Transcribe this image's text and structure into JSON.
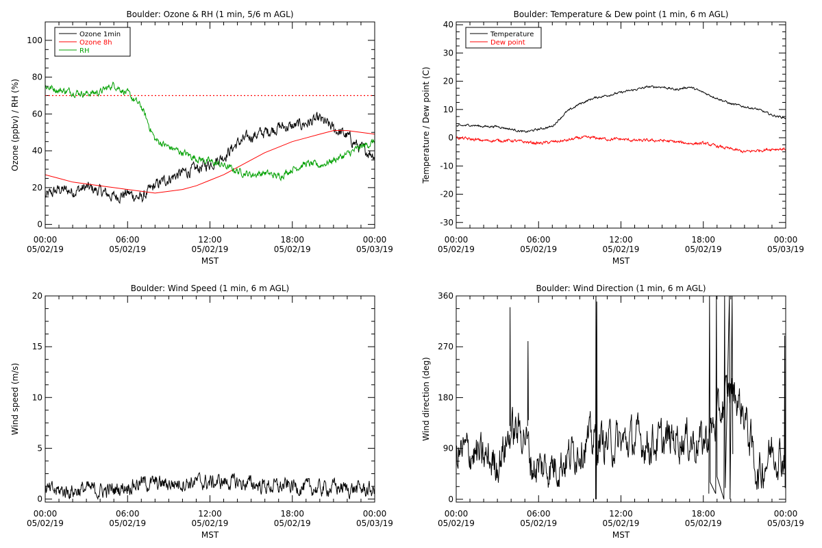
{
  "chart_data": [
    {
      "type": "line",
      "title": "Boulder: Ozone & RH (1 min, 5/6 m AGL)",
      "ylabel": "Ozone (ppbv) / RH (%)",
      "xlabel": "MST",
      "xlim": [
        0,
        24
      ],
      "ylim": [
        -2,
        110
      ],
      "yticks": [
        0,
        20,
        40,
        60,
        80,
        100
      ],
      "x_tick_times": [
        "00:00",
        "06:00",
        "12:00",
        "18:00",
        "00:00"
      ],
      "x_tick_dates": [
        "05/02/19",
        "05/02/19",
        "05/02/19",
        "05/02/19",
        "05/03/19"
      ],
      "reference_line": {
        "y": 70,
        "color": "#ff0000",
        "style": "dotted"
      },
      "legend_position": "top-left",
      "series": [
        {
          "name": "Ozone 1min",
          "color": "#000000",
          "noise": 2.5,
          "points": [
            [
              0,
              15
            ],
            [
              1,
              19
            ],
            [
              2,
              18
            ],
            [
              3,
              20
            ],
            [
              4,
              18
            ],
            [
              5,
              15
            ],
            [
              6,
              17
            ],
            [
              7,
              14
            ],
            [
              8,
              21
            ],
            [
              9,
              25
            ],
            [
              10,
              28
            ],
            [
              11,
              30
            ],
            [
              12,
              33
            ],
            [
              13,
              37
            ],
            [
              14,
              44
            ],
            [
              15,
              48
            ],
            [
              16,
              50
            ],
            [
              17,
              53
            ],
            [
              18,
              53
            ],
            [
              19,
              55
            ],
            [
              20,
              57
            ],
            [
              21,
              52
            ],
            [
              22,
              48
            ],
            [
              23,
              41
            ],
            [
              24,
              38
            ]
          ]
        },
        {
          "name": "Ozone 8h",
          "color": "#ff0000",
          "noise": 0,
          "points": [
            [
              0,
              27
            ],
            [
              1,
              25
            ],
            [
              2,
              23
            ],
            [
              3,
              22
            ],
            [
              4,
              21
            ],
            [
              5,
              20
            ],
            [
              6,
              19
            ],
            [
              7,
              18
            ],
            [
              8,
              17
            ],
            [
              9,
              18
            ],
            [
              10,
              19
            ],
            [
              11,
              21
            ],
            [
              12,
              24
            ],
            [
              13,
              27
            ],
            [
              14,
              31
            ],
            [
              15,
              35
            ],
            [
              16,
              39
            ],
            [
              17,
              42
            ],
            [
              18,
              45
            ],
            [
              19,
              47
            ],
            [
              20,
              49
            ],
            [
              21,
              51
            ],
            [
              22,
              51
            ],
            [
              23,
              50
            ],
            [
              24,
              49
            ]
          ]
        },
        {
          "name": "RH",
          "color": "#00a000",
          "noise": 1.5,
          "points": [
            [
              0,
              75
            ],
            [
              1,
              73
            ],
            [
              2,
              72
            ],
            [
              3,
              71
            ],
            [
              4,
              72
            ],
            [
              5,
              76
            ],
            [
              6,
              71
            ],
            [
              7,
              64
            ],
            [
              8,
              46
            ],
            [
              9,
              42
            ],
            [
              10,
              39
            ],
            [
              11,
              36
            ],
            [
              12,
              34
            ],
            [
              13,
              32
            ],
            [
              14,
              29
            ],
            [
              15,
              27
            ],
            [
              16,
              28
            ],
            [
              17,
              26
            ],
            [
              18,
              30
            ],
            [
              19,
              33
            ],
            [
              20,
              32
            ],
            [
              21,
              35
            ],
            [
              22,
              38
            ],
            [
              23,
              42
            ],
            [
              24,
              45
            ]
          ]
        }
      ]
    },
    {
      "type": "line",
      "title": "Boulder: Temperature & Dew point (1 min, 6 m AGL)",
      "ylabel": "Temperature / Dew point (C)",
      "xlabel": "MST",
      "xlim": [
        0,
        24
      ],
      "ylim": [
        -32,
        41
      ],
      "yticks": [
        -30,
        -20,
        -10,
        0,
        10,
        20,
        30,
        40
      ],
      "x_tick_times": [
        "00:00",
        "06:00",
        "12:00",
        "18:00",
        "00:00"
      ],
      "x_tick_dates": [
        "05/02/19",
        "05/02/19",
        "05/02/19",
        "05/02/19",
        "05/03/19"
      ],
      "legend_position": "top-left",
      "series": [
        {
          "name": "Temperature",
          "color": "#000000",
          "noise": 0.3,
          "points": [
            [
              0,
              4
            ],
            [
              1,
              4.5
            ],
            [
              2,
              4
            ],
            [
              3,
              4
            ],
            [
              4,
              3
            ],
            [
              5,
              2
            ],
            [
              6,
              3
            ],
            [
              7,
              4
            ],
            [
              8,
              9
            ],
            [
              9,
              12
            ],
            [
              10,
              14
            ],
            [
              11,
              15
            ],
            [
              12,
              16
            ],
            [
              13,
              17
            ],
            [
              14,
              18
            ],
            [
              15,
              18
            ],
            [
              16,
              17
            ],
            [
              17,
              18
            ],
            [
              18,
              16
            ],
            [
              19,
              14
            ],
            [
              20,
              12
            ],
            [
              21,
              11
            ],
            [
              22,
              10
            ],
            [
              23,
              8
            ],
            [
              24,
              7
            ]
          ]
        },
        {
          "name": "Dew point",
          "color": "#ff0000",
          "noise": 0.4,
          "points": [
            [
              0,
              0
            ],
            [
              1,
              -0.5
            ],
            [
              2,
              -1
            ],
            [
              3,
              -1
            ],
            [
              4,
              -1
            ],
            [
              5,
              -1.5
            ],
            [
              6,
              -2
            ],
            [
              7,
              -1.5
            ],
            [
              8,
              -1
            ],
            [
              9,
              0
            ],
            [
              10,
              0
            ],
            [
              11,
              -0.5
            ],
            [
              12,
              -0.5
            ],
            [
              13,
              -1
            ],
            [
              14,
              -1
            ],
            [
              15,
              -1
            ],
            [
              16,
              -1.5
            ],
            [
              17,
              -2
            ],
            [
              18,
              -2
            ],
            [
              19,
              -3
            ],
            [
              20,
              -4
            ],
            [
              21,
              -5
            ],
            [
              22,
              -4.5
            ],
            [
              23,
              -4
            ],
            [
              24,
              -4
            ]
          ]
        }
      ]
    },
    {
      "type": "line",
      "title": "Boulder: Wind Speed (1 min, 6 m AGL)",
      "ylabel": "Wind speed (m/s)",
      "xlabel": "MST",
      "xlim": [
        0,
        24
      ],
      "ylim": [
        -0.3,
        20
      ],
      "yticks": [
        0,
        5,
        10,
        15,
        20
      ],
      "x_tick_times": [
        "00:00",
        "06:00",
        "12:00",
        "18:00",
        "00:00"
      ],
      "x_tick_dates": [
        "05/02/19",
        "05/02/19",
        "05/02/19",
        "05/02/19",
        "05/03/19"
      ],
      "series": [
        {
          "color": "#000000",
          "noise": 0.6,
          "floor": 0,
          "points": [
            [
              0,
              0.8
            ],
            [
              2,
              0.8
            ],
            [
              3,
              1.0
            ],
            [
              4,
              0.8
            ],
            [
              5,
              0.9
            ],
            [
              6,
              1.3
            ],
            [
              7,
              1.6
            ],
            [
              8,
              1.5
            ],
            [
              9,
              1.5
            ],
            [
              10,
              1.6
            ],
            [
              11,
              1.7
            ],
            [
              12,
              1.6
            ],
            [
              13,
              1.7
            ],
            [
              14,
              1.6
            ],
            [
              15,
              1.5
            ],
            [
              16,
              1.3
            ],
            [
              17,
              1.2
            ],
            [
              18,
              1.3
            ],
            [
              19,
              1.1
            ],
            [
              20,
              1.0
            ],
            [
              21,
              1.2
            ],
            [
              22,
              1.0
            ],
            [
              23,
              1.0
            ],
            [
              24,
              0.8
            ]
          ]
        }
      ]
    },
    {
      "type": "line",
      "title": "Boulder: Wind Direction (1 min, 6 m AGL)",
      "ylabel": "Wind direction (deg)",
      "xlabel": "MST",
      "xlim": [
        0,
        24
      ],
      "ylim": [
        -5,
        360
      ],
      "yticks": [
        0,
        90,
        180,
        270,
        360
      ],
      "x_tick_times": [
        "00:00",
        "06:00",
        "12:00",
        "18:00",
        "00:00"
      ],
      "x_tick_dates": [
        "05/02/19",
        "05/02/19",
        "05/02/19",
        "05/02/19",
        "05/03/19"
      ],
      "series": [
        {
          "color": "#000000",
          "noise": 28,
          "floor": 0,
          "ceil": 360,
          "points": [
            [
              0,
              80
            ],
            [
              1,
              85
            ],
            [
              2,
              70
            ],
            [
              3,
              65
            ],
            [
              4,
              120
            ],
            [
              5,
              120
            ],
            [
              5.5,
              60
            ],
            [
              6,
              55
            ],
            [
              7,
              60
            ],
            [
              8,
              70
            ],
            [
              9,
              95
            ],
            [
              10,
              105
            ],
            [
              11,
              100
            ],
            [
              12,
              100
            ],
            [
              13,
              105
            ],
            [
              14,
              100
            ],
            [
              15,
              100
            ],
            [
              16,
              110
            ],
            [
              17,
              105
            ],
            [
              18,
              100
            ],
            [
              19,
              140
            ],
            [
              20,
              200
            ],
            [
              21,
              150
            ],
            [
              22,
              40
            ],
            [
              23,
              90
            ],
            [
              24,
              70
            ]
          ]
        },
        {
          "color": "#000000",
          "noise": 0,
          "points": [
            [
              3.9,
              130
            ],
            [
              3.92,
              340
            ],
            [
              3.95,
              120
            ]
          ]
        },
        {
          "color": "#000000",
          "noise": 0,
          "points": [
            [
              5.2,
              130
            ],
            [
              5.23,
              280
            ],
            [
              5.26,
              140
            ]
          ]
        },
        {
          "color": "#000000",
          "noise": 0,
          "points": [
            [
              10.15,
              0
            ],
            [
              10.18,
              360
            ],
            [
              10.21,
              0
            ],
            [
              10.24,
              350
            ],
            [
              10.27,
              60
            ]
          ]
        },
        {
          "color": "#000000",
          "noise": 0,
          "points": [
            [
              18.4,
              10
            ],
            [
              18.45,
              360
            ],
            [
              18.5,
              30
            ],
            [
              18.9,
              10
            ],
            [
              18.95,
              360
            ],
            [
              19.0,
              40
            ],
            [
              19.5,
              0
            ],
            [
              19.55,
              360
            ],
            [
              19.6,
              20
            ],
            [
              19.9,
              360
            ],
            [
              19.95,
              0
            ],
            [
              20.1,
              360
            ],
            [
              20.15,
              80
            ]
          ]
        },
        {
          "color": "#000000",
          "noise": 0,
          "points": [
            [
              23.9,
              60
            ],
            [
              23.93,
              290
            ],
            [
              23.96,
              20
            ]
          ]
        }
      ]
    }
  ]
}
